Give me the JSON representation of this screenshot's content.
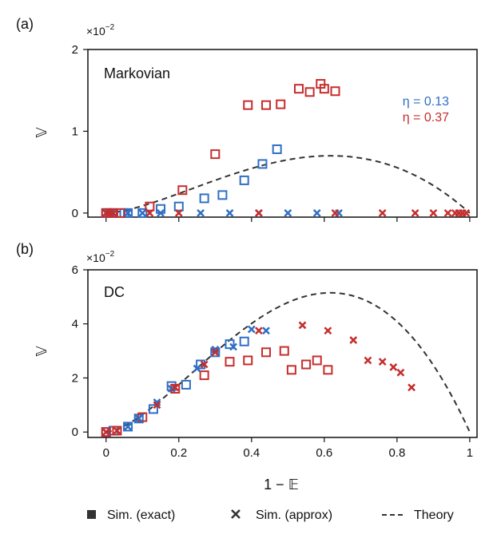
{
  "figure": {
    "xlabel": "1 − 𝔼",
    "colors": {
      "eta_low": "#2f6fc4",
      "eta_high": "#c62d2d",
      "theory": "#333333",
      "axis": "#111111"
    },
    "legend": [
      {
        "label": "Sim. (exact)",
        "marker": "square"
      },
      {
        "label": "Sim. (approx)",
        "marker": "cross"
      },
      {
        "label": "Theory",
        "marker": "dash"
      }
    ],
    "eta_legend": [
      {
        "label": "η = 0.13",
        "color_key": "eta_low"
      },
      {
        "label": "η = 0.37",
        "color_key": "eta_high"
      }
    ]
  },
  "chart_data": [
    {
      "type": "scatter",
      "panel_tag": "(a)",
      "title": "Markovian",
      "ylabel": "𝕍",
      "xlabel": "",
      "y_exponent": "×10",
      "y_exponent_power": "−2",
      "xlim": [
        -0.05,
        1.02
      ],
      "ylim": [
        -0.05,
        2.0
      ],
      "xticks": [
        0,
        0.2,
        0.4,
        0.6,
        0.8,
        1
      ],
      "xtick_labels": [
        "",
        "",
        "",
        "",
        "",
        ""
      ],
      "yticks": [
        0,
        1,
        2
      ],
      "ytick_labels": [
        "0",
        "1",
        "2"
      ],
      "theory": {
        "peak_x": 0.617,
        "peak_y": 0.7
      },
      "series": [
        {
          "name": "η = 0.13 exact",
          "marker": "square",
          "color_key": "eta_low",
          "x": [
            0.0,
            0.01,
            0.02,
            0.05,
            0.06,
            0.1,
            0.15,
            0.2,
            0.27,
            0.32,
            0.38,
            0.43,
            0.47
          ],
          "y": [
            0.0,
            0.0,
            0.0,
            0.0,
            0.0,
            0.0,
            0.05,
            0.08,
            0.18,
            0.22,
            0.4,
            0.6,
            0.78
          ]
        },
        {
          "name": "η = 0.37 exact",
          "marker": "square",
          "color_key": "eta_high",
          "x": [
            0.0,
            0.02,
            0.04,
            0.12,
            0.21,
            0.3,
            0.39,
            0.44,
            0.48,
            0.53,
            0.56,
            0.59,
            0.6,
            0.63
          ],
          "y": [
            0.0,
            0.0,
            0.0,
            0.08,
            0.28,
            0.72,
            1.32,
            1.32,
            1.33,
            1.52,
            1.48,
            1.58,
            1.52,
            1.49
          ]
        },
        {
          "name": "η = 0.13 approx",
          "marker": "cross",
          "color_key": "eta_low",
          "x": [
            0.0,
            0.02,
            0.06,
            0.1,
            0.15,
            0.26,
            0.34,
            0.42,
            0.5,
            0.58,
            0.64
          ],
          "y": [
            0.0,
            0.0,
            0.0,
            0.0,
            0.0,
            0.0,
            0.0,
            0.0,
            0.0,
            0.0,
            0.0
          ]
        },
        {
          "name": "η = 0.37 approx",
          "marker": "cross",
          "color_key": "eta_high",
          "x": [
            0.0,
            0.01,
            0.02,
            0.12,
            0.2,
            0.42,
            0.63,
            0.76,
            0.85,
            0.9,
            0.94,
            0.96,
            0.97,
            0.98,
            0.99
          ],
          "y": [
            0.0,
            0.0,
            0.0,
            0.0,
            0.0,
            0.0,
            0.0,
            0.0,
            0.0,
            0.0,
            0.0,
            0.0,
            0.0,
            0.0,
            0.0
          ]
        }
      ]
    },
    {
      "type": "scatter",
      "panel_tag": "(b)",
      "title": "DC",
      "ylabel": "𝕍",
      "xlabel": "1 − 𝔼",
      "y_exponent": "×10",
      "y_exponent_power": "−2",
      "xlim": [
        -0.05,
        1.02
      ],
      "ylim": [
        -0.2,
        6.0
      ],
      "xticks": [
        0,
        0.2,
        0.4,
        0.6,
        0.8,
        1
      ],
      "xtick_labels": [
        "0",
        "0.2",
        "0.4",
        "0.6",
        "0.8",
        "1"
      ],
      "yticks": [
        0,
        2,
        4,
        6
      ],
      "ytick_labels": [
        "0",
        "2",
        "4",
        "6"
      ],
      "theory": {
        "peak_x": 0.617,
        "peak_y": 5.15
      },
      "series": [
        {
          "name": "η = 0.13 exact",
          "marker": "square",
          "color_key": "eta_low",
          "x": [
            0.0,
            0.02,
            0.06,
            0.09,
            0.13,
            0.18,
            0.22,
            0.26,
            0.3,
            0.34,
            0.38
          ],
          "y": [
            0.0,
            0.05,
            0.2,
            0.5,
            0.85,
            1.7,
            1.75,
            2.5,
            2.95,
            3.25,
            3.35
          ]
        },
        {
          "name": "η = 0.37 exact",
          "marker": "square",
          "color_key": "eta_high",
          "x": [
            0.0,
            0.03,
            0.1,
            0.19,
            0.27,
            0.34,
            0.39,
            0.44,
            0.49,
            0.51,
            0.55,
            0.58,
            0.61
          ],
          "y": [
            0.0,
            0.05,
            0.55,
            1.6,
            2.1,
            2.6,
            2.65,
            2.95,
            3.0,
            2.3,
            2.5,
            2.65,
            2.3
          ]
        },
        {
          "name": "η = 0.13 approx",
          "marker": "cross",
          "color_key": "eta_low",
          "x": [
            0.0,
            0.06,
            0.09,
            0.14,
            0.18,
            0.25,
            0.3,
            0.35,
            0.4,
            0.44
          ],
          "y": [
            0.0,
            0.2,
            0.5,
            1.1,
            1.6,
            2.35,
            3.05,
            3.15,
            3.8,
            3.75
          ]
        },
        {
          "name": "η = 0.37 approx",
          "marker": "cross",
          "color_key": "eta_high",
          "x": [
            0.0,
            0.03,
            0.14,
            0.19,
            0.27,
            0.3,
            0.42,
            0.54,
            0.61,
            0.68,
            0.72,
            0.76,
            0.79,
            0.81,
            0.84
          ],
          "y": [
            0.0,
            0.05,
            1.0,
            1.65,
            2.5,
            2.95,
            3.75,
            3.95,
            3.75,
            3.4,
            2.65,
            2.6,
            2.4,
            2.2,
            1.65
          ]
        }
      ]
    }
  ]
}
